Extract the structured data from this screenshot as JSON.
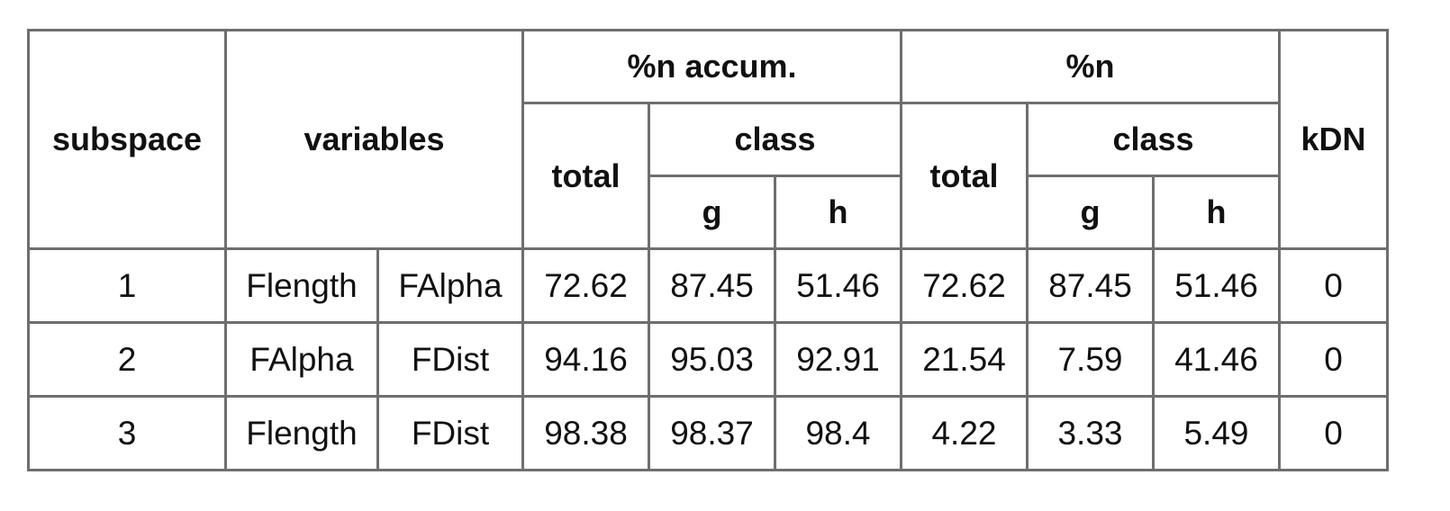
{
  "headers": {
    "subspace": "subspace",
    "variables": "variables",
    "accum_group": "%n accum.",
    "n_group": "%n",
    "kdn": "kDN",
    "accum_total": "total",
    "accum_class": "class",
    "accum_g": "g",
    "accum_h": "h",
    "n_total": "total",
    "n_class": "class",
    "n_g": "g",
    "n_h": "h"
  },
  "rows": [
    {
      "subspace": "1",
      "var1": "Flength",
      "var2": "FAlpha",
      "acc_total": "72.62",
      "acc_g": "87.45",
      "acc_h": "51.46",
      "n_total": "72.62",
      "n_g": "87.45",
      "n_h": "51.46",
      "kdn": "0"
    },
    {
      "subspace": "2",
      "var1": "FAlpha",
      "var2": "FDist",
      "acc_total": "94.16",
      "acc_g": "95.03",
      "acc_h": "92.91",
      "n_total": "21.54",
      "n_g": "7.59",
      "n_h": "41.46",
      "kdn": "0"
    },
    {
      "subspace": "3",
      "var1": "Flength",
      "var2": "FDist",
      "acc_total": "98.38",
      "acc_g": "98.37",
      "acc_h": "98.4",
      "n_total": "4.22",
      "n_g": "3.33",
      "n_h": "5.49",
      "kdn": "0"
    }
  ]
}
